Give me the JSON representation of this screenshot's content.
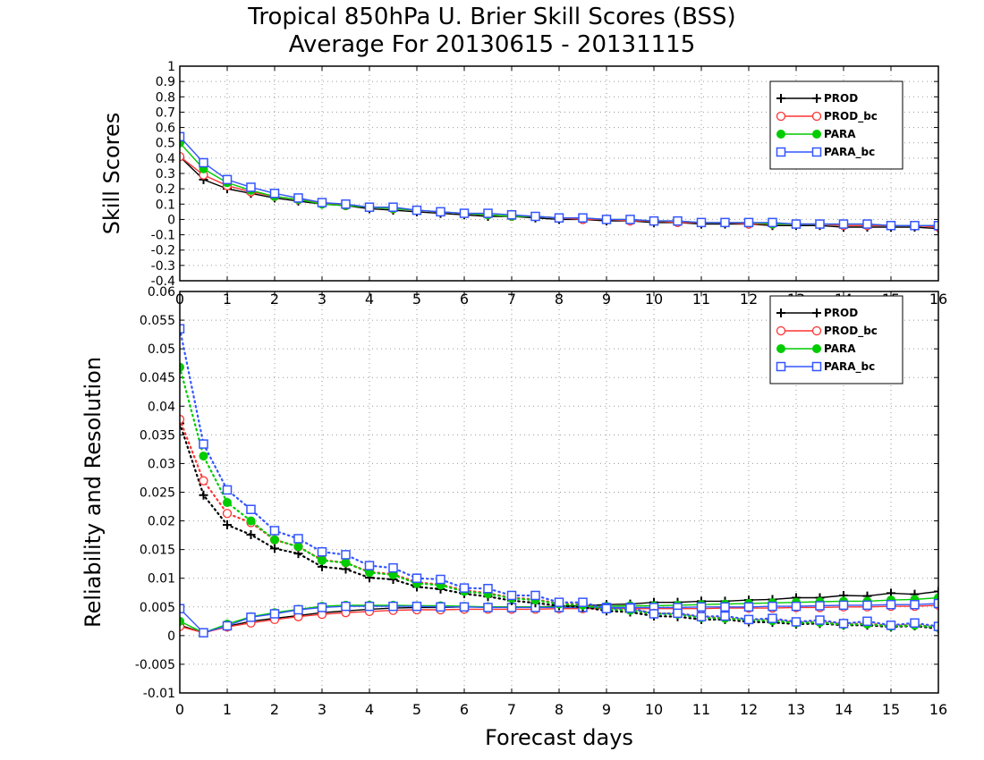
{
  "figure": {
    "title_line1": "Tropical 850hPa U. Brier Skill Scores (BSS)",
    "title_line2": "Average For 20130615 - 20131115",
    "xlabel": "Forecast days"
  },
  "chart_data": [
    {
      "type": "line",
      "ylabel": "Skill Scores",
      "xlim": [
        0,
        16
      ],
      "ylim": [
        -0.4,
        1
      ],
      "xticks": [
        0,
        1,
        2,
        3,
        4,
        5,
        6,
        7,
        8,
        9,
        10,
        11,
        12,
        13,
        14,
        15,
        16
      ],
      "yticks": [
        -0.4,
        -0.3,
        -0.2,
        -0.1,
        0,
        0.1,
        0.2,
        0.3,
        0.4,
        0.5,
        0.6,
        0.7,
        0.8,
        0.9,
        1
      ],
      "ytick_labels": [
        "-0.4",
        "-0.3",
        "-0.2",
        "-0.1",
        "0",
        "0.1",
        "0.2",
        "0.3",
        "0.4",
        "0.5",
        "0.6",
        "0.7",
        "0.8",
        "0.9",
        "1"
      ],
      "grid": true,
      "legend_position": "top-right",
      "x": [
        0,
        0.5,
        1,
        1.5,
        2,
        2.5,
        3,
        3.5,
        4,
        4.5,
        5,
        5.5,
        6,
        6.5,
        7,
        7.5,
        8,
        8.5,
        9,
        9.5,
        10,
        10.5,
        11,
        11.5,
        12,
        12.5,
        13,
        13.5,
        14,
        14.5,
        15,
        15.5,
        16
      ],
      "series": [
        {
          "name": "PROD",
          "color": "#000000",
          "marker": "plus",
          "values": [
            0.41,
            0.26,
            0.2,
            0.17,
            0.14,
            0.12,
            0.1,
            0.09,
            0.07,
            0.06,
            0.05,
            0.04,
            0.03,
            0.02,
            0.02,
            0.01,
            0.0,
            0.0,
            -0.01,
            -0.01,
            -0.02,
            -0.02,
            -0.03,
            -0.03,
            -0.03,
            -0.04,
            -0.04,
            -0.04,
            -0.05,
            -0.05,
            -0.05,
            -0.05,
            -0.06
          ]
        },
        {
          "name": "PROD_bc",
          "color": "#ff3333",
          "marker": "circle-open",
          "values": [
            0.41,
            0.29,
            0.22,
            0.18,
            0.15,
            0.13,
            0.11,
            0.09,
            0.08,
            0.07,
            0.06,
            0.05,
            0.04,
            0.03,
            0.02,
            0.02,
            0.01,
            0.0,
            0.0,
            -0.01,
            -0.01,
            -0.02,
            -0.02,
            -0.02,
            -0.03,
            -0.03,
            -0.03,
            -0.03,
            -0.04,
            -0.04,
            -0.04,
            -0.04,
            -0.05
          ]
        },
        {
          "name": "PARA",
          "color": "#00cc00",
          "marker": "circle-filled",
          "values": [
            0.5,
            0.33,
            0.24,
            0.19,
            0.15,
            0.13,
            0.1,
            0.09,
            0.08,
            0.07,
            0.06,
            0.05,
            0.04,
            0.03,
            0.02,
            0.02,
            0.01,
            0.01,
            0.0,
            0.0,
            -0.01,
            -0.01,
            -0.02,
            -0.02,
            -0.02,
            -0.03,
            -0.03,
            -0.03,
            -0.03,
            -0.03,
            -0.04,
            -0.04,
            -0.04
          ]
        },
        {
          "name": "PARA_bc",
          "color": "#3355ff",
          "marker": "square-open",
          "values": [
            0.54,
            0.37,
            0.26,
            0.21,
            0.17,
            0.14,
            0.11,
            0.1,
            0.08,
            0.08,
            0.06,
            0.05,
            0.04,
            0.04,
            0.03,
            0.02,
            0.01,
            0.01,
            0.0,
            0.0,
            -0.01,
            -0.01,
            -0.02,
            -0.02,
            -0.02,
            -0.02,
            -0.03,
            -0.03,
            -0.03,
            -0.03,
            -0.04,
            -0.04,
            -0.04
          ]
        }
      ]
    },
    {
      "type": "line",
      "ylabel": "Reliability and Resolution",
      "xlim": [
        0,
        16
      ],
      "ylim": [
        -0.01,
        0.06
      ],
      "xticks": [
        0,
        1,
        2,
        3,
        4,
        5,
        6,
        7,
        8,
        9,
        10,
        11,
        12,
        13,
        14,
        15,
        16
      ],
      "yticks": [
        -0.01,
        -0.005,
        0,
        0.005,
        0.01,
        0.015,
        0.02,
        0.025,
        0.03,
        0.035,
        0.04,
        0.045,
        0.05,
        0.055,
        0.06
      ],
      "ytick_labels": [
        "-0.01",
        "-0.005",
        "0",
        "0.005",
        "0.01",
        "0.015",
        "0.02",
        "0.025",
        "0.03",
        "0.035",
        "0.04",
        "0.045",
        "0.05",
        "0.055",
        "0.06"
      ],
      "grid": true,
      "legend_position": "top-right",
      "x": [
        0,
        0.5,
        1,
        1.5,
        2,
        2.5,
        3,
        3.5,
        4,
        4.5,
        5,
        5.5,
        6,
        6.5,
        7,
        7.5,
        8,
        8.5,
        9,
        9.5,
        10,
        10.5,
        11,
        11.5,
        12,
        12.5,
        13,
        13.5,
        14,
        14.5,
        15,
        15.5,
        16
      ],
      "series": [
        {
          "name": "PROD",
          "color": "#000000",
          "marker": "plus",
          "kind": "resolution",
          "values": [
            0.0018,
            0.0005,
            0.0016,
            0.0025,
            0.003,
            0.0035,
            0.004,
            0.0043,
            0.0046,
            0.0048,
            0.0049,
            0.0049,
            0.005,
            0.005,
            0.005,
            0.005,
            0.0051,
            0.0052,
            0.0054,
            0.0055,
            0.0058,
            0.0058,
            0.006,
            0.006,
            0.0062,
            0.0063,
            0.0066,
            0.0066,
            0.007,
            0.0069,
            0.0074,
            0.0072,
            0.0077
          ]
        },
        {
          "name": "PROD_bc",
          "color": "#ff3333",
          "marker": "circle-open",
          "kind": "resolution",
          "values": [
            0.0016,
            0.0005,
            0.0015,
            0.0022,
            0.0028,
            0.0033,
            0.0037,
            0.004,
            0.0042,
            0.0044,
            0.0045,
            0.0045,
            0.0046,
            0.0046,
            0.0046,
            0.0046,
            0.0047,
            0.0047,
            0.0047,
            0.0047,
            0.0047,
            0.0047,
            0.0047,
            0.0048,
            0.0048,
            0.0048,
            0.0049,
            0.0049,
            0.005,
            0.005,
            0.0051,
            0.0051,
            0.0053
          ]
        },
        {
          "name": "PARA",
          "color": "#00cc00",
          "marker": "circle-filled",
          "kind": "resolution",
          "values": [
            0.0025,
            0.0005,
            0.002,
            0.0033,
            0.004,
            0.0046,
            0.0051,
            0.0053,
            0.0053,
            0.0053,
            0.0052,
            0.0052,
            0.0051,
            0.005,
            0.005,
            0.005,
            0.005,
            0.0051,
            0.0051,
            0.0052,
            0.0052,
            0.0053,
            0.0054,
            0.0055,
            0.0056,
            0.0057,
            0.0058,
            0.0059,
            0.006,
            0.006,
            0.0062,
            0.0063,
            0.0066
          ]
        },
        {
          "name": "PARA_bc",
          "color": "#3355ff",
          "marker": "square-open",
          "kind": "resolution",
          "values": [
            0.0047,
            0.0005,
            0.0017,
            0.0032,
            0.0038,
            0.0045,
            0.0049,
            0.0051,
            0.0051,
            0.0051,
            0.0051,
            0.005,
            0.005,
            0.0049,
            0.0049,
            0.0049,
            0.0049,
            0.0049,
            0.0049,
            0.0049,
            0.0049,
            0.0049,
            0.005,
            0.005,
            0.005,
            0.0051,
            0.0051,
            0.0052,
            0.0053,
            0.0053,
            0.0054,
            0.0054,
            0.0056
          ]
        },
        {
          "name": "PROD",
          "color": "#000000",
          "marker": "plus",
          "kind": "reliability",
          "values": [
            0.037,
            0.0245,
            0.0193,
            0.0176,
            0.0152,
            0.0143,
            0.012,
            0.0116,
            0.0101,
            0.0098,
            0.0085,
            0.0081,
            0.0073,
            0.0068,
            0.0061,
            0.0057,
            0.0052,
            0.005,
            0.0043,
            0.0041,
            0.0034,
            0.0033,
            0.0028,
            0.0028,
            0.0024,
            0.0023,
            0.002,
            0.0021,
            0.0018,
            0.0018,
            0.0015,
            0.0017,
            0.0012
          ]
        },
        {
          "name": "PROD_bc",
          "color": "#ff3333",
          "marker": "circle-open",
          "kind": "reliability",
          "values": [
            0.0377,
            0.027,
            0.0213,
            0.0197,
            0.0167,
            0.0155,
            0.0132,
            0.0127,
            0.0111,
            0.0107,
            0.0093,
            0.0089,
            0.0079,
            0.0074,
            0.0066,
            0.0063,
            0.0056,
            0.0054,
            0.0047,
            0.0046,
            0.0039,
            0.0038,
            0.0032,
            0.0031,
            0.0027,
            0.0027,
            0.0023,
            0.0024,
            0.002,
            0.0021,
            0.0017,
            0.0019,
            0.0014
          ]
        },
        {
          "name": "PARA",
          "color": "#00cc00",
          "marker": "circle-filled",
          "kind": "reliability",
          "values": [
            0.0468,
            0.0313,
            0.0232,
            0.02,
            0.0167,
            0.0155,
            0.0131,
            0.0127,
            0.011,
            0.0106,
            0.0091,
            0.0088,
            0.0077,
            0.0073,
            0.0065,
            0.0062,
            0.0055,
            0.0053,
            0.0046,
            0.0044,
            0.0038,
            0.0037,
            0.0031,
            0.003,
            0.0027,
            0.0026,
            0.0022,
            0.0023,
            0.0019,
            0.002,
            0.0016,
            0.0018,
            0.0014
          ]
        },
        {
          "name": "PARA_bc",
          "color": "#3355ff",
          "marker": "square-open",
          "kind": "reliability",
          "values": [
            0.0535,
            0.0334,
            0.0254,
            0.022,
            0.0183,
            0.0169,
            0.0146,
            0.0141,
            0.0122,
            0.0118,
            0.01,
            0.0098,
            0.0083,
            0.0082,
            0.007,
            0.007,
            0.0058,
            0.0058,
            0.0047,
            0.0048,
            0.0038,
            0.0039,
            0.0033,
            0.0034,
            0.0028,
            0.003,
            0.0024,
            0.0027,
            0.0021,
            0.0025,
            0.0018,
            0.0022,
            0.0016
          ]
        }
      ]
    }
  ]
}
